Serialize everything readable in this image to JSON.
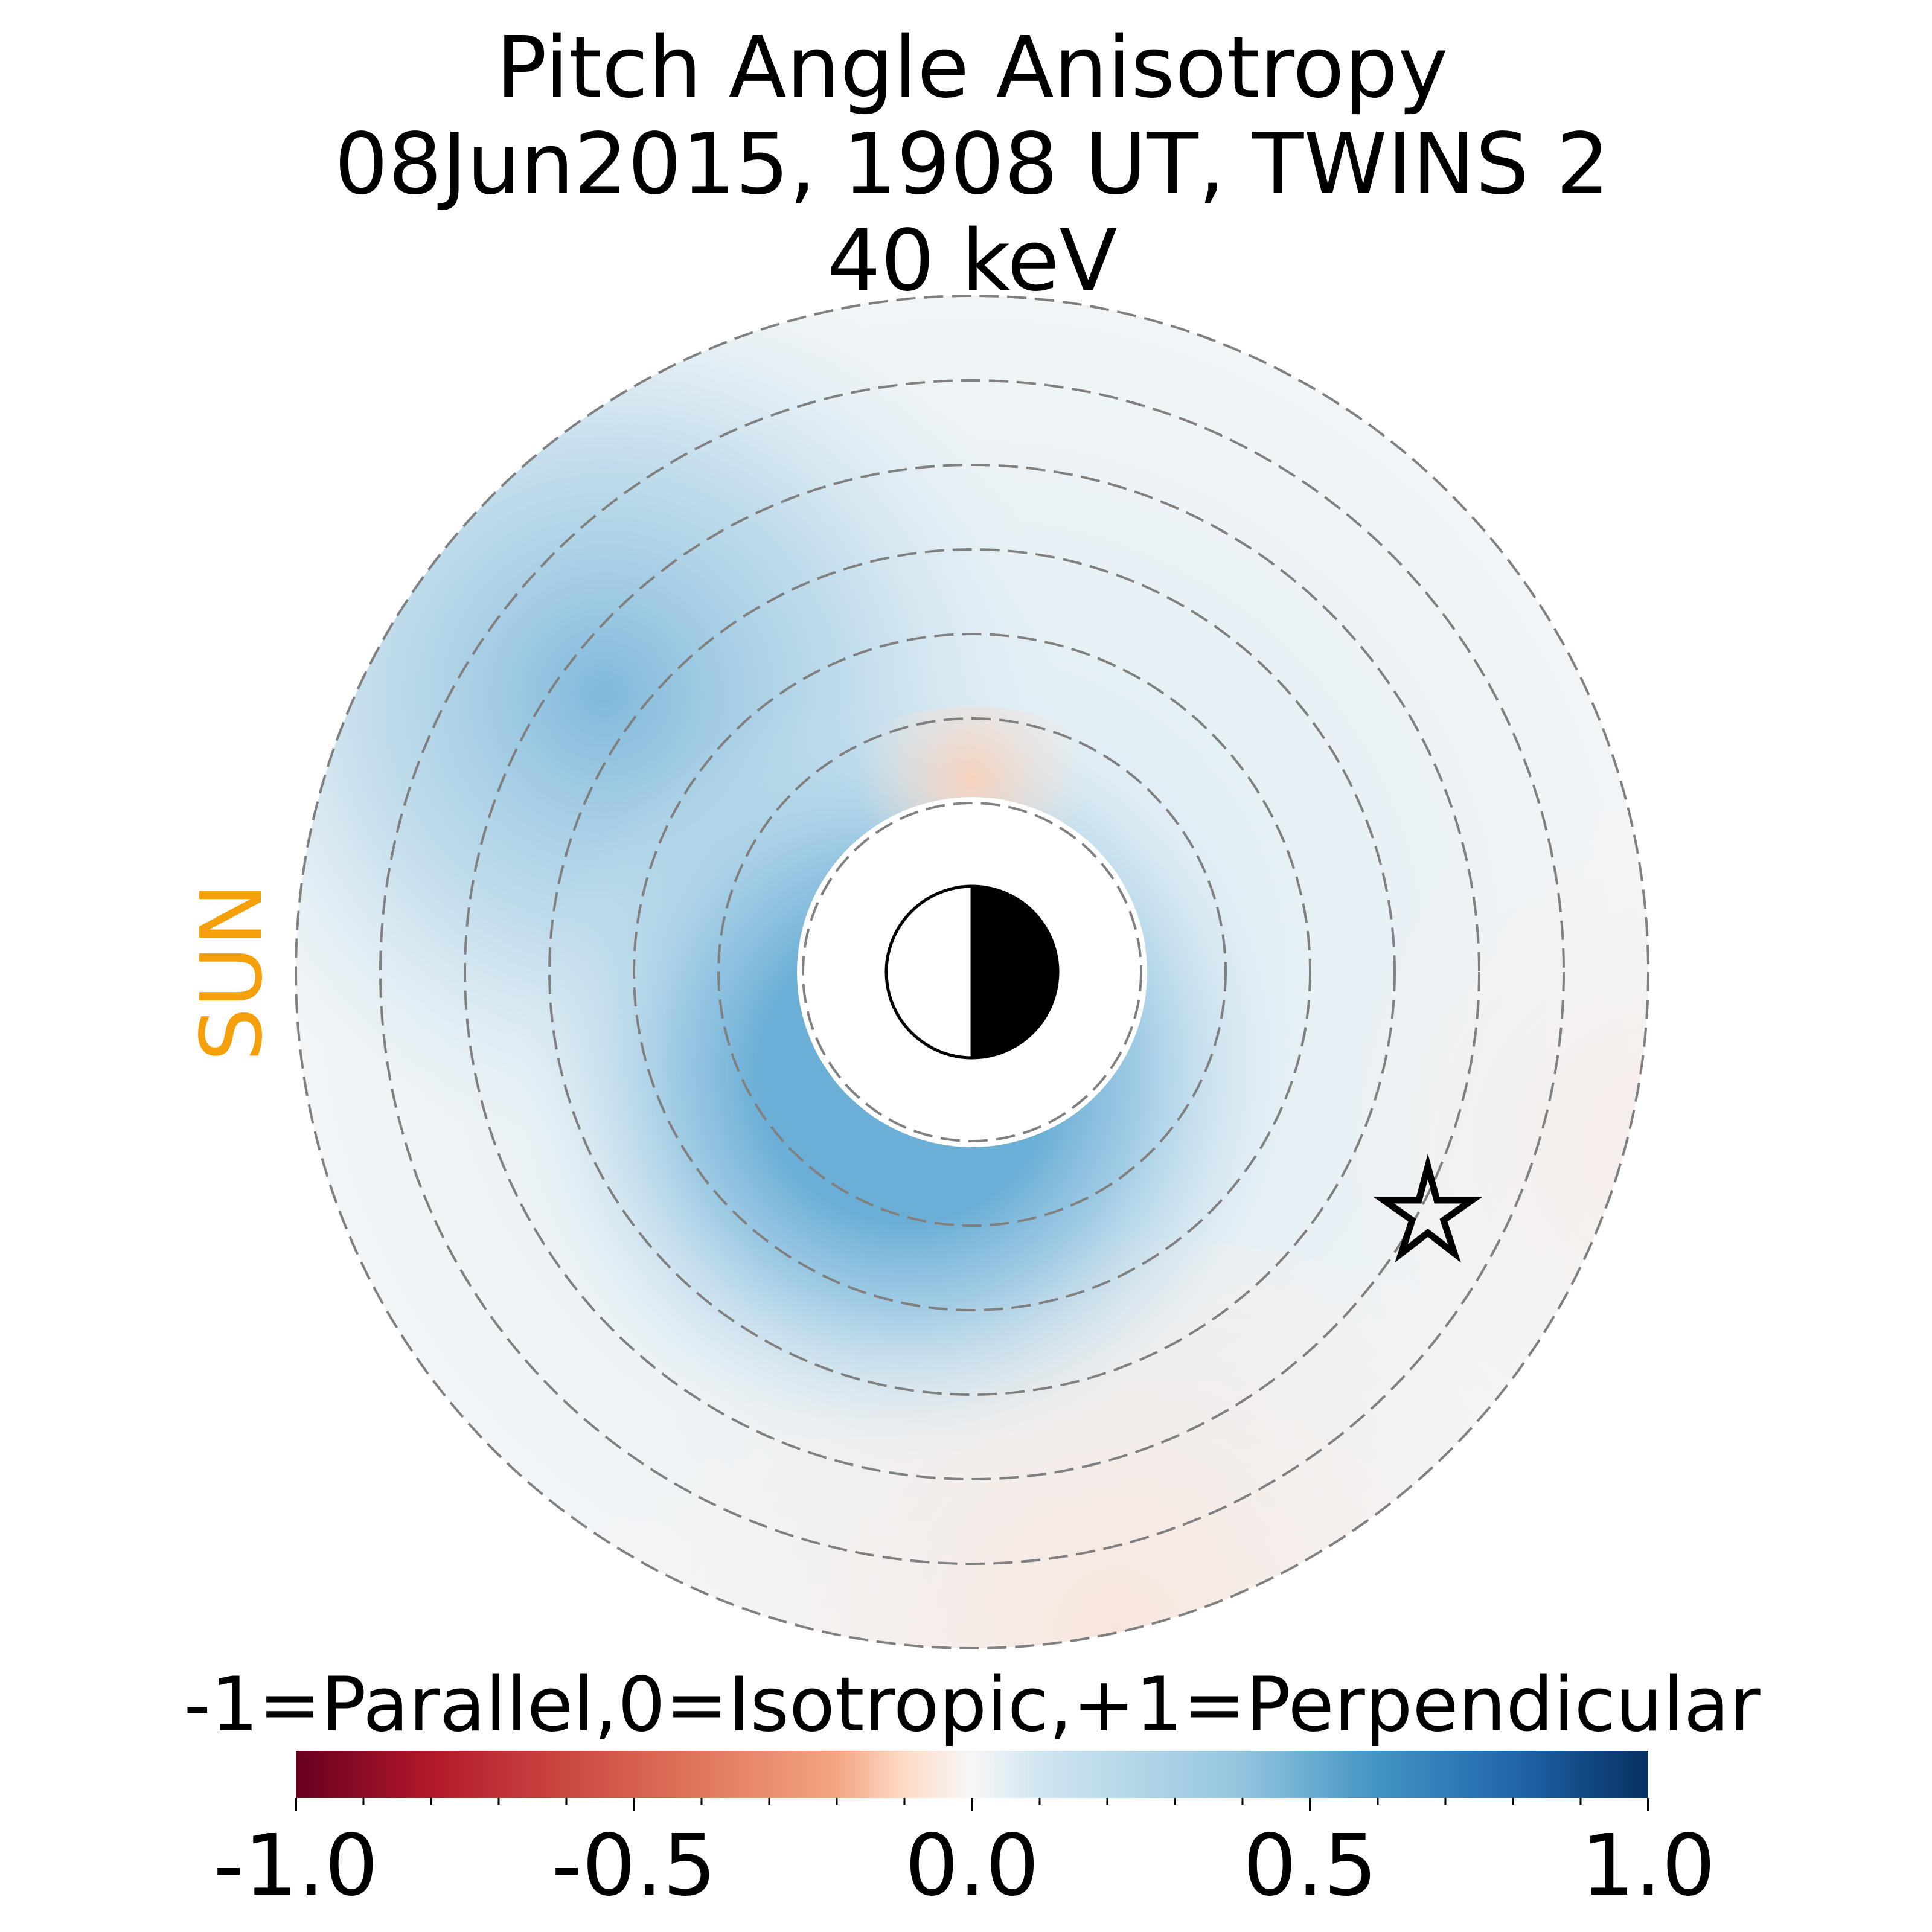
{
  "chart_data": {
    "type": "heatmap",
    "title": [
      "Pitch Angle Anisotropy",
      "08Jun2015, 1908 UT,  TWINS 2",
      "40 keV"
    ],
    "sun_label": "SUN",
    "colorbar": {
      "label": "-1=Parallel,0=Isotropic,+1=Perpendicular",
      "range": [
        -1.0,
        1.0
      ],
      "ticks": [
        -1.0,
        -0.5,
        0.0,
        0.5,
        1.0
      ],
      "tick_labels": [
        "-1.0",
        "-0.5",
        "0.0",
        "0.5",
        "1.0"
      ],
      "minor_step": 0.1,
      "colormap": "RdBu"
    },
    "polar_grid": {
      "ring_radii_re": [
        2,
        3,
        4,
        5,
        6,
        7,
        8
      ],
      "style": "dashed",
      "color": "#808080"
    },
    "map": {
      "inner_radius_re": 2,
      "outer_radius_re": 8,
      "regions": [
        {
          "region": "dayside outer ring (upper-left)",
          "anisotropy": 0.45
        },
        {
          "region": "inner ring near Earth (dusk to midnight)",
          "anisotropy": 0.45
        },
        {
          "region": "noon-side inner patch",
          "anisotropy": -0.1
        },
        {
          "region": "outer dawn and midnight edges",
          "anisotropy": -0.03
        },
        {
          "region": "elsewhere",
          "anisotropy": 0.1
        }
      ]
    },
    "markers": [
      {
        "type": "earth",
        "symbol": "half-shaded circle"
      },
      {
        "type": "spacecraft",
        "symbol": "star"
      }
    ]
  }
}
